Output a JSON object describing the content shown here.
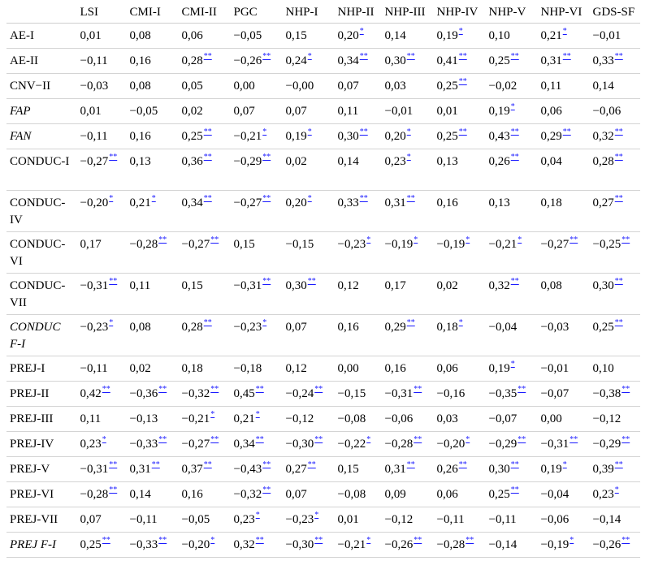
{
  "table": {
    "columns": [
      "",
      "LSI",
      "CMI-I",
      "CMI-II",
      "PGC",
      "NHP-I",
      "NHP-II",
      "NHP-III",
      "NHP-IV",
      "NHP-V",
      "NHP-VI",
      "GDS-SF"
    ],
    "rows": [
      {
        "label": "AE-I",
        "italic": false,
        "cells": [
          {
            "v": "0,01",
            "s": ""
          },
          {
            "v": "0,08",
            "s": ""
          },
          {
            "v": "0,06",
            "s": ""
          },
          {
            "v": "−0,05",
            "s": ""
          },
          {
            "v": "0,15",
            "s": ""
          },
          {
            "v": "0,20",
            "s": "*"
          },
          {
            "v": "0,14",
            "s": ""
          },
          {
            "v": "0,19",
            "s": "*"
          },
          {
            "v": "0,10",
            "s": ""
          },
          {
            "v": "0,21",
            "s": "*"
          },
          {
            "v": "−0,01",
            "s": ""
          }
        ]
      },
      {
        "label": "AE-II",
        "italic": false,
        "cells": [
          {
            "v": "−0,11",
            "s": ""
          },
          {
            "v": "0,16",
            "s": ""
          },
          {
            "v": "0,28",
            "s": "**"
          },
          {
            "v": "−0,26",
            "s": "**"
          },
          {
            "v": "0,24",
            "s": "*"
          },
          {
            "v": "0,34",
            "s": "**"
          },
          {
            "v": "0,30",
            "s": "**"
          },
          {
            "v": "0,41",
            "s": "**"
          },
          {
            "v": "0,25",
            "s": "**"
          },
          {
            "v": "0,31",
            "s": "**"
          },
          {
            "v": "0,33",
            "s": "**"
          }
        ]
      },
      {
        "label": "CNV−II",
        "italic": false,
        "cells": [
          {
            "v": "−0,03",
            "s": ""
          },
          {
            "v": "0,08",
            "s": ""
          },
          {
            "v": "0,05",
            "s": ""
          },
          {
            "v": "0,00",
            "s": ""
          },
          {
            "v": "−0,00",
            "s": ""
          },
          {
            "v": "0,07",
            "s": ""
          },
          {
            "v": "0,03",
            "s": ""
          },
          {
            "v": "0,25",
            "s": "**"
          },
          {
            "v": "−0,02",
            "s": ""
          },
          {
            "v": "0,11",
            "s": ""
          },
          {
            "v": "0,14",
            "s": ""
          }
        ]
      },
      {
        "label": "FAP",
        "italic": true,
        "cells": [
          {
            "v": "0,01",
            "s": ""
          },
          {
            "v": "−0,05",
            "s": ""
          },
          {
            "v": "0,02",
            "s": ""
          },
          {
            "v": "0,07",
            "s": ""
          },
          {
            "v": "0,07",
            "s": ""
          },
          {
            "v": "0,11",
            "s": ""
          },
          {
            "v": "−0,01",
            "s": ""
          },
          {
            "v": "0,01",
            "s": ""
          },
          {
            "v": "0,19",
            "s": "*"
          },
          {
            "v": "0,06",
            "s": ""
          },
          {
            "v": "−0,06",
            "s": ""
          }
        ]
      },
      {
        "label": "FAN",
        "italic": true,
        "cells": [
          {
            "v": "−0,11",
            "s": ""
          },
          {
            "v": "0,16",
            "s": ""
          },
          {
            "v": "0,25",
            "s": "**"
          },
          {
            "v": "−0,21",
            "s": "*"
          },
          {
            "v": "0,19",
            "s": "*"
          },
          {
            "v": "0,30",
            "s": "**"
          },
          {
            "v": "0,20",
            "s": "*"
          },
          {
            "v": "0,25",
            "s": "**"
          },
          {
            "v": "0,43",
            "s": "**"
          },
          {
            "v": "0,29",
            "s": "**"
          },
          {
            "v": "0,32",
            "s": "**"
          }
        ]
      },
      {
        "label": "CONDUC-I",
        "italic": false,
        "cells": [
          {
            "v": "−0,27",
            "s": "**"
          },
          {
            "v": "0,13",
            "s": ""
          },
          {
            "v": "0,36",
            "s": "**"
          },
          {
            "v": "−0,29",
            "s": "**"
          },
          {
            "v": "0,02",
            "s": ""
          },
          {
            "v": "0,14",
            "s": ""
          },
          {
            "v": "0,23",
            "s": "*"
          },
          {
            "v": "0,13",
            "s": ""
          },
          {
            "v": "0,26",
            "s": "**"
          },
          {
            "v": "0,04",
            "s": ""
          },
          {
            "v": "0,28",
            "s": "**"
          }
        ]
      },
      {
        "label": "CONDUC-IV",
        "italic": false,
        "cells": [
          {
            "v": "−0,20",
            "s": "*"
          },
          {
            "v": "0,21",
            "s": "*"
          },
          {
            "v": "0,34",
            "s": "**"
          },
          {
            "v": "−0,27",
            "s": "**"
          },
          {
            "v": "0,20",
            "s": "*"
          },
          {
            "v": "0,33",
            "s": "**"
          },
          {
            "v": "0,31",
            "s": "**"
          },
          {
            "v": "0,16",
            "s": ""
          },
          {
            "v": "0,13",
            "s": ""
          },
          {
            "v": "0,18",
            "s": ""
          },
          {
            "v": "0,27",
            "s": "**"
          }
        ]
      },
      {
        "label": "CONDUC-VI",
        "italic": false,
        "cells": [
          {
            "v": "0,17",
            "s": ""
          },
          {
            "v": "−0,28",
            "s": "**"
          },
          {
            "v": "−0,27",
            "s": "**"
          },
          {
            "v": "0,15",
            "s": ""
          },
          {
            "v": "−0,15",
            "s": ""
          },
          {
            "v": "−0,23",
            "s": "*"
          },
          {
            "v": "−0,19",
            "s": "*"
          },
          {
            "v": "−0,19",
            "s": "*"
          },
          {
            "v": "−0,21",
            "s": "*"
          },
          {
            "v": "−0,27",
            "s": "**"
          },
          {
            "v": "−0,25",
            "s": "**"
          }
        ]
      },
      {
        "label": "CONDUC-VII",
        "italic": false,
        "cells": [
          {
            "v": "−0,31",
            "s": "**"
          },
          {
            "v": "0,11",
            "s": ""
          },
          {
            "v": "0,15",
            "s": ""
          },
          {
            "v": "−0,31",
            "s": "**"
          },
          {
            "v": "0,30",
            "s": "**"
          },
          {
            "v": "0,12",
            "s": ""
          },
          {
            "v": "0,17",
            "s": ""
          },
          {
            "v": "0,02",
            "s": ""
          },
          {
            "v": "0,32",
            "s": "**"
          },
          {
            "v": "0,08",
            "s": ""
          },
          {
            "v": "0,30",
            "s": "**"
          }
        ]
      },
      {
        "label": "CONDUC F-I",
        "italic": true,
        "cells": [
          {
            "v": "−0,23",
            "s": "*"
          },
          {
            "v": "0,08",
            "s": ""
          },
          {
            "v": "0,28",
            "s": "**"
          },
          {
            "v": "−0,23",
            "s": "*"
          },
          {
            "v": "0,07",
            "s": ""
          },
          {
            "v": "0,16",
            "s": ""
          },
          {
            "v": "0,29",
            "s": "**"
          },
          {
            "v": "0,18",
            "s": "*"
          },
          {
            "v": "−0,04",
            "s": ""
          },
          {
            "v": "−0,03",
            "s": ""
          },
          {
            "v": "0,25",
            "s": "**"
          }
        ]
      },
      {
        "label": "PREJ-I",
        "italic": false,
        "cells": [
          {
            "v": "−0,11",
            "s": ""
          },
          {
            "v": "0,02",
            "s": ""
          },
          {
            "v": "0,18",
            "s": ""
          },
          {
            "v": "−0,18",
            "s": ""
          },
          {
            "v": "0,12",
            "s": ""
          },
          {
            "v": "0,00",
            "s": ""
          },
          {
            "v": "0,16",
            "s": ""
          },
          {
            "v": "0,06",
            "s": ""
          },
          {
            "v": "0,19",
            "s": "*"
          },
          {
            "v": "−0,01",
            "s": ""
          },
          {
            "v": "0,10",
            "s": ""
          }
        ]
      },
      {
        "label": "PREJ-II",
        "italic": false,
        "cells": [
          {
            "v": "0,42",
            "s": "**"
          },
          {
            "v": "−0,36",
            "s": "**"
          },
          {
            "v": "−0,32",
            "s": "**"
          },
          {
            "v": "0,45",
            "s": "**"
          },
          {
            "v": "−0,24",
            "s": "**"
          },
          {
            "v": "−0,15",
            "s": ""
          },
          {
            "v": "−0,31",
            "s": "**"
          },
          {
            "v": "−0,16",
            "s": ""
          },
          {
            "v": "−0,35",
            "s": "**"
          },
          {
            "v": "−0,07",
            "s": ""
          },
          {
            "v": "−0,38",
            "s": "**"
          }
        ]
      },
      {
        "label": "PREJ-III",
        "italic": false,
        "cells": [
          {
            "v": "0,11",
            "s": ""
          },
          {
            "v": "−0,13",
            "s": ""
          },
          {
            "v": "−0,21",
            "s": "*"
          },
          {
            "v": "0,21",
            "s": "*"
          },
          {
            "v": "−0,12",
            "s": ""
          },
          {
            "v": "−0,08",
            "s": ""
          },
          {
            "v": "−0,06",
            "s": ""
          },
          {
            "v": "0,03",
            "s": ""
          },
          {
            "v": "−0,07",
            "s": ""
          },
          {
            "v": "0,00",
            "s": ""
          },
          {
            "v": "−0,12",
            "s": ""
          }
        ]
      },
      {
        "label": "PREJ-IV",
        "italic": false,
        "cells": [
          {
            "v": "0,23",
            "s": "*"
          },
          {
            "v": "−0,33",
            "s": "**"
          },
          {
            "v": "−0,27",
            "s": "**"
          },
          {
            "v": "0,34",
            "s": "**"
          },
          {
            "v": "−0,30",
            "s": "**"
          },
          {
            "v": "−0,22",
            "s": "*"
          },
          {
            "v": "−0,28",
            "s": "**"
          },
          {
            "v": "−0,20",
            "s": "*"
          },
          {
            "v": "−0,29",
            "s": "**"
          },
          {
            "v": "−0,31",
            "s": "**"
          },
          {
            "v": "−0,29",
            "s": "**"
          }
        ]
      },
      {
        "label": "PREJ-V",
        "italic": false,
        "cells": [
          {
            "v": "−0,31",
            "s": "**"
          },
          {
            "v": "0,31",
            "s": "**"
          },
          {
            "v": "0,37",
            "s": "**"
          },
          {
            "v": "−0,43",
            "s": "**"
          },
          {
            "v": "0,27",
            "s": "**"
          },
          {
            "v": "0,15",
            "s": ""
          },
          {
            "v": "0,31",
            "s": "**"
          },
          {
            "v": "0,26",
            "s": "**"
          },
          {
            "v": "0,30",
            "s": "**"
          },
          {
            "v": "0,19",
            "s": "*"
          },
          {
            "v": "0,39",
            "s": "**"
          }
        ]
      },
      {
        "label": "PREJ-VI",
        "italic": false,
        "cells": [
          {
            "v": "−0,28",
            "s": "**"
          },
          {
            "v": "0,14",
            "s": ""
          },
          {
            "v": "0,16",
            "s": ""
          },
          {
            "v": "−0,32",
            "s": "**"
          },
          {
            "v": "0,07",
            "s": ""
          },
          {
            "v": "−0,08",
            "s": ""
          },
          {
            "v": "0,09",
            "s": ""
          },
          {
            "v": "0,06",
            "s": ""
          },
          {
            "v": "0,25",
            "s": "**"
          },
          {
            "v": "−0,04",
            "s": ""
          },
          {
            "v": "0,23",
            "s": "*"
          }
        ]
      },
      {
        "label": "PREJ-VII",
        "italic": false,
        "cells": [
          {
            "v": "0,07",
            "s": ""
          },
          {
            "v": "−0,11",
            "s": ""
          },
          {
            "v": "−0,05",
            "s": ""
          },
          {
            "v": "0,23",
            "s": "*"
          },
          {
            "v": "−0,23",
            "s": "*"
          },
          {
            "v": "0,01",
            "s": ""
          },
          {
            "v": "−0,12",
            "s": ""
          },
          {
            "v": "−0,11",
            "s": ""
          },
          {
            "v": "−0,11",
            "s": ""
          },
          {
            "v": "−0,06",
            "s": ""
          },
          {
            "v": "−0,14",
            "s": ""
          }
        ]
      },
      {
        "label": "PREJ F-I",
        "italic": true,
        "cells": [
          {
            "v": "0,25",
            "s": "**"
          },
          {
            "v": "−0,33",
            "s": "**"
          },
          {
            "v": "−0,20",
            "s": "*"
          },
          {
            "v": "0,32",
            "s": "**"
          },
          {
            "v": "−0,30",
            "s": "**"
          },
          {
            "v": "−0,21",
            "s": "*"
          },
          {
            "v": "−0,26",
            "s": "**"
          },
          {
            "v": "−0,28",
            "s": "**"
          },
          {
            "v": "−0,14",
            "s": ""
          },
          {
            "v": "−0,19",
            "s": "*"
          },
          {
            "v": "−0,26",
            "s": "**"
          }
        ]
      }
    ]
  },
  "colors": {
    "significance_marker": "#1a1aff",
    "rule": "#d4d4d4"
  }
}
